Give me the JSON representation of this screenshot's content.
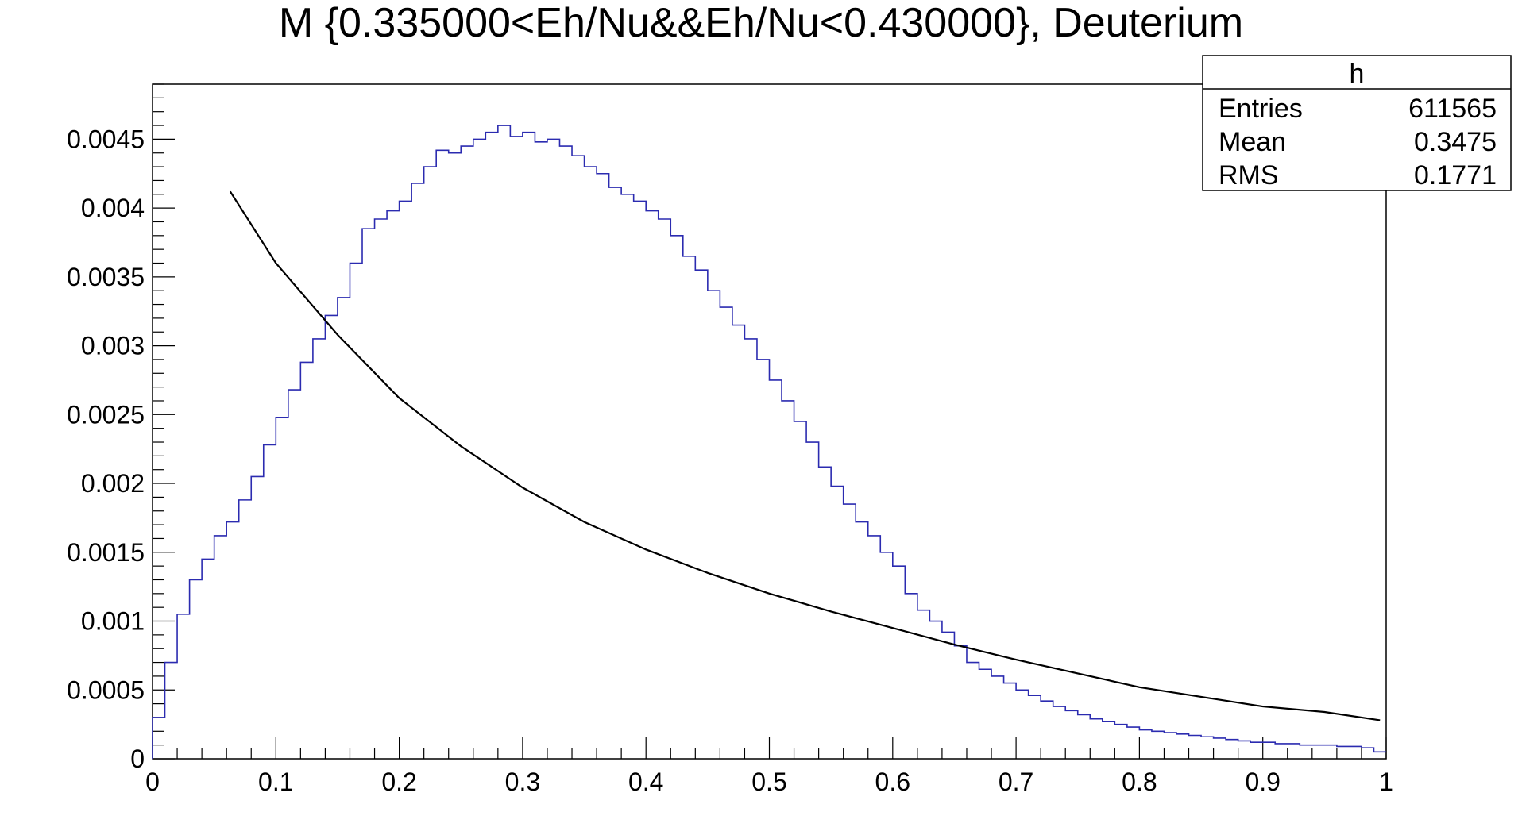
{
  "chart_data": {
    "type": "line",
    "title": "M {0.335000<Eh/Nu&&Eh/Nu<0.430000}, Deuterium",
    "xlabel": "",
    "ylabel": "",
    "xlim": [
      0,
      1
    ],
    "ylim": [
      0,
      0.0049
    ],
    "grid": false,
    "x_ticks": [
      0,
      0.1,
      0.2,
      0.3,
      0.4,
      0.5,
      0.6,
      0.7,
      0.8,
      0.9,
      1
    ],
    "x_tick_labels": [
      "0",
      "0.1",
      "0.2",
      "0.3",
      "0.4",
      "0.5",
      "0.6",
      "0.7",
      "0.8",
      "0.9",
      "1"
    ],
    "y_ticks": [
      0,
      0.0005,
      0.001,
      0.0015,
      0.002,
      0.0025,
      0.003,
      0.0035,
      0.004,
      0.0045
    ],
    "y_tick_labels": [
      "0",
      "0.0005",
      "0.001",
      "0.0015",
      "0.002",
      "0.0025",
      "0.003",
      "0.0035",
      "0.004",
      "0.0045"
    ],
    "stats_box": {
      "name": "h",
      "rows": [
        {
          "label": "Entries",
          "value": "611565"
        },
        {
          "label": "Mean",
          "value": "0.3475"
        },
        {
          "label": "RMS",
          "value": "0.1771"
        }
      ]
    },
    "series": [
      {
        "style": "histogram",
        "color": "#2b2bb0",
        "x": [
          0.005,
          0.015,
          0.025,
          0.035,
          0.045,
          0.055,
          0.065,
          0.075,
          0.085,
          0.095,
          0.105,
          0.115,
          0.125,
          0.135,
          0.145,
          0.155,
          0.165,
          0.175,
          0.185,
          0.195,
          0.205,
          0.215,
          0.225,
          0.235,
          0.245,
          0.255,
          0.265,
          0.275,
          0.285,
          0.295,
          0.305,
          0.315,
          0.325,
          0.335,
          0.345,
          0.355,
          0.365,
          0.375,
          0.385,
          0.395,
          0.405,
          0.415,
          0.425,
          0.435,
          0.445,
          0.455,
          0.465,
          0.475,
          0.485,
          0.495,
          0.505,
          0.515,
          0.525,
          0.535,
          0.545,
          0.555,
          0.565,
          0.575,
          0.585,
          0.595,
          0.605,
          0.615,
          0.625,
          0.635,
          0.645,
          0.655,
          0.665,
          0.675,
          0.685,
          0.695,
          0.705,
          0.715,
          0.725,
          0.735,
          0.745,
          0.755,
          0.765,
          0.775,
          0.785,
          0.795,
          0.805,
          0.815,
          0.825,
          0.835,
          0.845,
          0.855,
          0.865,
          0.875,
          0.885,
          0.895,
          0.905,
          0.915,
          0.925,
          0.935,
          0.945,
          0.955,
          0.965,
          0.975,
          0.985,
          0.995
        ],
        "values": [
          0.0003,
          0.0007,
          0.00105,
          0.0013,
          0.00145,
          0.00162,
          0.00172,
          0.00188,
          0.00205,
          0.00228,
          0.00248,
          0.00268,
          0.00288,
          0.00305,
          0.00322,
          0.00335,
          0.0036,
          0.00385,
          0.00392,
          0.00398,
          0.00405,
          0.00418,
          0.0043,
          0.00442,
          0.0044,
          0.00445,
          0.0045,
          0.00455,
          0.0046,
          0.00452,
          0.00455,
          0.00448,
          0.0045,
          0.00445,
          0.00438,
          0.0043,
          0.00425,
          0.00415,
          0.0041,
          0.00405,
          0.00398,
          0.00392,
          0.0038,
          0.00365,
          0.00355,
          0.0034,
          0.00328,
          0.00315,
          0.00305,
          0.0029,
          0.00275,
          0.0026,
          0.00245,
          0.0023,
          0.00212,
          0.00198,
          0.00185,
          0.00172,
          0.00162,
          0.0015,
          0.0014,
          0.0012,
          0.00108,
          0.001,
          0.00092,
          0.00082,
          0.0007,
          0.00065,
          0.0006,
          0.00055,
          0.0005,
          0.00046,
          0.00042,
          0.00038,
          0.00035,
          0.00032,
          0.00029,
          0.00027,
          0.00025,
          0.00023,
          0.00021,
          0.0002,
          0.00019,
          0.00018,
          0.00017,
          0.00016,
          0.00015,
          0.00014,
          0.00013,
          0.00012,
          0.00012,
          0.00011,
          0.00011,
          0.0001,
          0.0001,
          0.0001,
          9e-05,
          9e-05,
          8e-05,
          5e-05
        ]
      },
      {
        "style": "line",
        "color": "#000000",
        "x": [
          0.063,
          0.1,
          0.15,
          0.2,
          0.25,
          0.3,
          0.35,
          0.4,
          0.45,
          0.5,
          0.55,
          0.6,
          0.65,
          0.7,
          0.75,
          0.8,
          0.85,
          0.9,
          0.95,
          0.995
        ],
        "values": [
          0.00412,
          0.0036,
          0.00308,
          0.00262,
          0.00227,
          0.00197,
          0.00172,
          0.00152,
          0.00135,
          0.0012,
          0.00107,
          0.00095,
          0.00083,
          0.00072,
          0.00062,
          0.00052,
          0.00045,
          0.00038,
          0.00034,
          0.00028
        ]
      }
    ]
  }
}
